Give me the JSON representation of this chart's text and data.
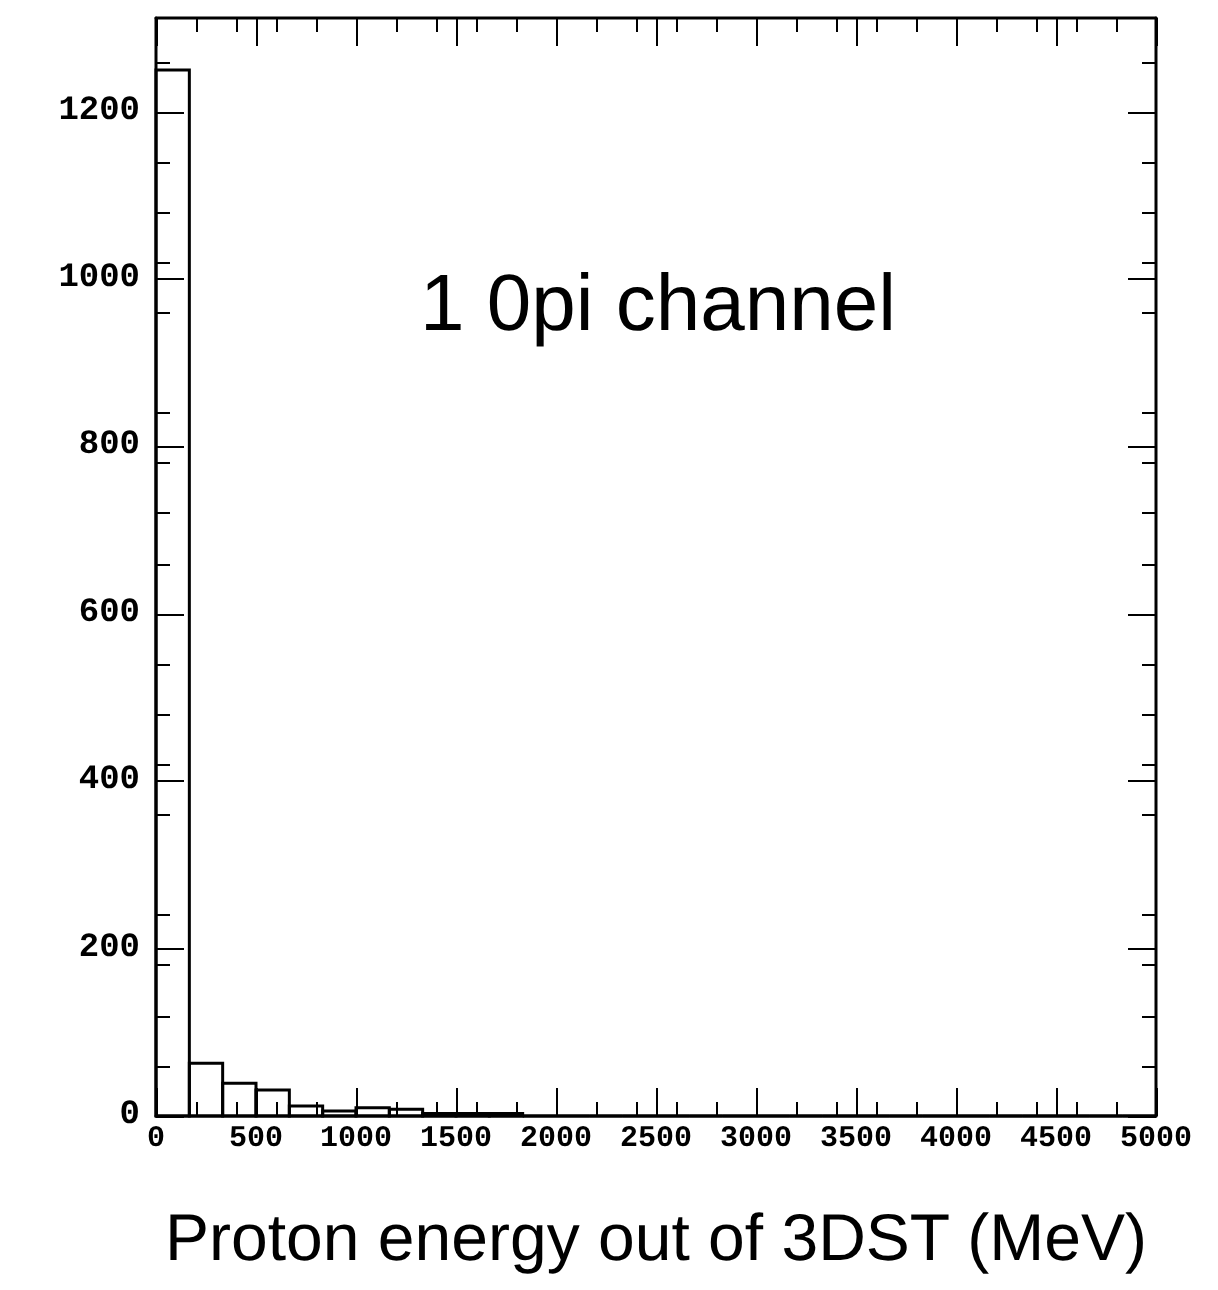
{
  "chart_data": {
    "type": "histogram",
    "xlabel": "Proton energy out of 3DST (MeV)",
    "annotations": [
      "1 0pi channel"
    ],
    "bins": [
      0,
      166.7,
      333.3,
      500,
      666.7,
      833.3,
      1000,
      1166.7,
      1333.3,
      1500,
      1666.7,
      1833.3,
      2000,
      2166.7,
      2333.3,
      2500,
      2666.7,
      2833.3,
      3000,
      3166.7,
      3333.3,
      3500,
      3666.7,
      3833.3,
      4000,
      4166.7,
      4333.3,
      4500,
      4666.7,
      4833.3,
      5000
    ],
    "values": [
      1250,
      63,
      39,
      31,
      12,
      6,
      10,
      8,
      3,
      3,
      3,
      0,
      0,
      0,
      0,
      0,
      0,
      0,
      0,
      0,
      0,
      0,
      0,
      0,
      0,
      0,
      0,
      0,
      0,
      0
    ],
    "color": "#000000",
    "xlim": [
      0,
      5000
    ],
    "xticks": [
      0,
      500,
      1000,
      1500,
      2000,
      2500,
      3000,
      3500,
      4000,
      4500,
      5000
    ],
    "ylim": [
      0,
      1312
    ],
    "yticks": [
      0,
      200,
      400,
      600,
      800,
      1000,
      1200
    ],
    "grid": false
  }
}
